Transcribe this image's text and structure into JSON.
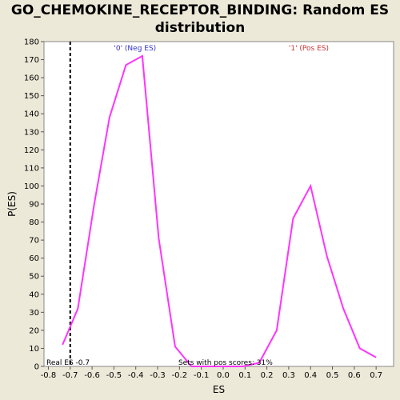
{
  "chart_data": {
    "type": "line",
    "title_line1": "GO_CHEMOKINE_RECEPTOR_BINDING: Random ES",
    "title_line2": "distribution",
    "xlabel": "ES",
    "ylabel": "P(ES)",
    "xlim": [
      -0.82,
      0.78
    ],
    "ylim": [
      0,
      180
    ],
    "xticks": [
      "-0.8",
      "-0.7",
      "-0.6",
      "-0.5",
      "-0.4",
      "-0.3",
      "-0.2",
      "-0.1",
      "0.0",
      "0.1",
      "0.2",
      "0.3",
      "0.4",
      "0.5",
      "0.6",
      "0.7"
    ],
    "xtick_values": [
      -0.8,
      -0.7,
      -0.6,
      -0.5,
      -0.4,
      -0.3,
      -0.2,
      -0.1,
      0.0,
      0.1,
      0.2,
      0.3,
      0.4,
      0.5,
      0.6,
      0.7
    ],
    "yticks": [
      "0",
      "10",
      "20",
      "30",
      "40",
      "50",
      "60",
      "70",
      "80",
      "90",
      "100",
      "110",
      "120",
      "130",
      "140",
      "150",
      "160",
      "170",
      "180"
    ],
    "ytick_values": [
      0,
      10,
      20,
      30,
      40,
      50,
      60,
      70,
      80,
      90,
      100,
      110,
      120,
      130,
      140,
      150,
      160,
      170,
      180
    ],
    "grid": false,
    "line_color": "#FF33FF",
    "series": [
      {
        "x": [
          -0.735,
          -0.665,
          -0.59,
          -0.52,
          -0.445,
          -0.37,
          -0.295,
          -0.22,
          -0.145,
          -0.07,
          0.0,
          0.09,
          0.165,
          0.245,
          0.32,
          0.4,
          0.475,
          0.55,
          0.625,
          0.7
        ],
        "y": [
          12,
          32,
          90,
          138,
          167,
          172,
          71,
          11,
          0,
          0,
          0,
          0,
          2,
          20,
          82,
          100,
          61,
          32,
          10,
          5
        ]
      }
    ],
    "real_es": -0.7,
    "real_es_text": "Real ES -0.7",
    "sets_text": "Sets with pos scores: 31%",
    "neg_label": "'0' (Neg ES)",
    "neg_color": "#3333CC",
    "pos_label": "'1' (Pos ES)",
    "pos_color": "#CC3333"
  }
}
